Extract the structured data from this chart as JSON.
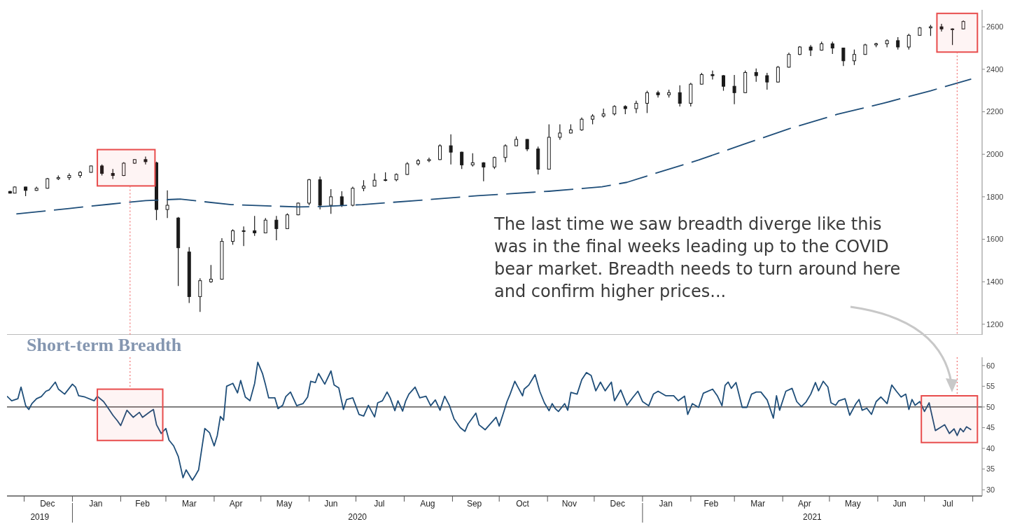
{
  "chart_data": [
    {
      "type": "candlestick",
      "color": "#1a1a1a",
      "x": [
        "2019-11-22",
        "2019-11-25",
        "2019-12-02",
        "2019-12-09",
        "2019-12-16",
        "2019-12-23",
        "2019-12-30",
        "2020-01-06",
        "2020-01-13",
        "2020-01-20",
        "2020-01-27",
        "2020-02-03",
        "2020-02-10",
        "2020-02-17",
        "2020-02-24",
        "2020-03-02",
        "2020-03-09",
        "2020-03-16",
        "2020-03-23",
        "2020-03-30",
        "2020-04-06",
        "2020-04-13",
        "2020-04-20",
        "2020-04-27",
        "2020-05-04",
        "2020-05-11",
        "2020-05-18",
        "2020-05-25",
        "2020-06-01",
        "2020-06-08",
        "2020-06-15",
        "2020-06-22",
        "2020-06-29",
        "2020-07-06",
        "2020-07-13",
        "2020-07-20",
        "2020-07-27",
        "2020-08-03",
        "2020-08-10",
        "2020-08-17",
        "2020-08-24",
        "2020-08-31",
        "2020-09-07",
        "2020-09-14",
        "2020-09-21",
        "2020-09-28",
        "2020-10-05",
        "2020-10-12",
        "2020-10-19",
        "2020-10-26",
        "2020-11-02",
        "2020-11-09",
        "2020-11-16",
        "2020-11-23",
        "2020-11-30",
        "2020-12-07",
        "2020-12-14",
        "2020-12-21",
        "2020-12-28",
        "2021-01-04",
        "2021-01-11",
        "2021-01-18",
        "2021-01-25",
        "2021-02-01",
        "2021-02-08",
        "2021-02-15",
        "2021-02-22",
        "2021-03-01",
        "2021-03-08",
        "2021-03-15",
        "2021-03-22",
        "2021-03-29",
        "2021-04-05",
        "2021-04-12",
        "2021-04-19",
        "2021-04-26",
        "2021-05-03",
        "2021-05-10",
        "2021-05-17",
        "2021-05-24",
        "2021-05-31",
        "2021-06-07",
        "2021-06-14",
        "2021-06-21",
        "2021-06-28",
        "2021-07-05",
        "2021-07-12",
        "2021-07-19",
        "2021-07-26"
      ],
      "ohlc": [
        [
          1825,
          1828,
          1815,
          1817
        ],
        [
          1817,
          1849,
          1817,
          1846
        ],
        [
          1846,
          1847,
          1803,
          1830
        ],
        [
          1830,
          1847,
          1828,
          1840
        ],
        [
          1840,
          1889,
          1838,
          1885
        ],
        [
          1885,
          1900,
          1879,
          1890
        ],
        [
          1890,
          1910,
          1879,
          1900
        ],
        [
          1900,
          1921,
          1889,
          1915
        ],
        [
          1915,
          1947,
          1913,
          1945
        ],
        [
          1945,
          1952,
          1900,
          1910
        ],
        [
          1910,
          1931,
          1884,
          1900
        ],
        [
          1900,
          1963,
          1898,
          1958
        ],
        [
          1958,
          1978,
          1955,
          1975
        ],
        [
          1975,
          1989,
          1952,
          1965
        ],
        [
          1960,
          1965,
          1690,
          1740
        ],
        [
          1740,
          1830,
          1700,
          1760
        ],
        [
          1700,
          1705,
          1380,
          1560
        ],
        [
          1540,
          1563,
          1300,
          1330
        ],
        [
          1330,
          1416,
          1258,
          1405
        ],
        [
          1400,
          1479,
          1395,
          1412
        ],
        [
          1412,
          1605,
          1410,
          1590
        ],
        [
          1590,
          1647,
          1574,
          1640
        ],
        [
          1640,
          1660,
          1568,
          1640
        ],
        [
          1640,
          1710,
          1616,
          1630
        ],
        [
          1630,
          1700,
          1628,
          1690
        ],
        [
          1690,
          1710,
          1595,
          1650
        ],
        [
          1650,
          1722,
          1648,
          1715
        ],
        [
          1715,
          1773,
          1713,
          1770
        ],
        [
          1770,
          1884,
          1760,
          1880
        ],
        [
          1880,
          1895,
          1740,
          1760
        ],
        [
          1760,
          1836,
          1720,
          1800
        ],
        [
          1800,
          1826,
          1752,
          1760
        ],
        [
          1760,
          1847,
          1755,
          1840
        ],
        [
          1840,
          1878,
          1826,
          1850
        ],
        [
          1850,
          1910,
          1848,
          1878
        ],
        [
          1878,
          1915,
          1873,
          1880
        ],
        [
          1880,
          1910,
          1873,
          1905
        ],
        [
          1905,
          1963,
          1903,
          1955
        ],
        [
          1955,
          1978,
          1947,
          1970
        ],
        [
          1970,
          1984,
          1963,
          1975
        ],
        [
          1975,
          2047,
          1973,
          2040
        ],
        [
          2040,
          2094,
          1952,
          2010
        ],
        [
          2010,
          2012,
          1931,
          1950
        ],
        [
          1950,
          2005,
          1942,
          1960
        ],
        [
          1960,
          1963,
          1873,
          1940
        ],
        [
          1940,
          1989,
          1931,
          1985
        ],
        [
          1985,
          2047,
          1963,
          2040
        ],
        [
          2040,
          2084,
          2038,
          2070
        ],
        [
          2070,
          2072,
          2015,
          2025
        ],
        [
          2025,
          2036,
          1905,
          1930
        ],
        [
          1930,
          2141,
          1928,
          2080
        ],
        [
          2080,
          2141,
          2068,
          2100
        ],
        [
          2100,
          2141,
          2098,
          2115
        ],
        [
          2115,
          2173,
          2110,
          2165
        ],
        [
          2165,
          2189,
          2141,
          2180
        ],
        [
          2180,
          2215,
          2173,
          2190
        ],
        [
          2190,
          2231,
          2183,
          2225
        ],
        [
          2225,
          2231,
          2189,
          2215
        ],
        [
          2215,
          2252,
          2194,
          2240
        ],
        [
          2240,
          2299,
          2194,
          2290
        ],
        [
          2290,
          2299,
          2267,
          2280
        ],
        [
          2280,
          2304,
          2267,
          2290
        ],
        [
          2290,
          2325,
          2225,
          2240
        ],
        [
          2240,
          2336,
          2225,
          2330
        ],
        [
          2330,
          2383,
          2328,
          2375
        ],
        [
          2375,
          2394,
          2352,
          2370
        ],
        [
          2370,
          2373,
          2299,
          2320
        ],
        [
          2320,
          2373,
          2236,
          2290
        ],
        [
          2290,
          2394,
          2288,
          2385
        ],
        [
          2385,
          2404,
          2341,
          2370
        ],
        [
          2370,
          2383,
          2304,
          2340
        ],
        [
          2340,
          2415,
          2338,
          2410
        ],
        [
          2410,
          2478,
          2408,
          2470
        ],
        [
          2470,
          2509,
          2467,
          2505
        ],
        [
          2505,
          2514,
          2462,
          2490
        ],
        [
          2490,
          2530,
          2488,
          2520
        ],
        [
          2520,
          2530,
          2472,
          2500
        ],
        [
          2500,
          2502,
          2415,
          2440
        ],
        [
          2440,
          2493,
          2420,
          2470
        ],
        [
          2470,
          2520,
          2468,
          2515
        ],
        [
          2515,
          2525,
          2504,
          2520
        ],
        [
          2520,
          2541,
          2504,
          2535
        ],
        [
          2535,
          2551,
          2493,
          2505
        ],
        [
          2505,
          2567,
          2493,
          2560
        ],
        [
          2560,
          2599,
          2558,
          2595
        ],
        [
          2595,
          2609,
          2557,
          2600
        ],
        [
          2600,
          2614,
          2578,
          2590
        ],
        [
          2590,
          2593,
          2514,
          2590
        ],
        [
          2590,
          2630,
          2588,
          2625
        ]
      ],
      "series": [
        {
          "type": "line",
          "color": "#1f4e79",
          "line_style": "dashed",
          "x": [
            "2019-11-26",
            "2019-12-30",
            "2020-01-25",
            "2020-02-17",
            "2020-03-10",
            "2020-04-12",
            "2020-05-25",
            "2020-06-08",
            "2020-07-05",
            "2020-08-10",
            "2020-09-17",
            "2020-11-02",
            "2020-12-06",
            "2020-12-22",
            "2021-01-07",
            "2021-02-06",
            "2021-03-07",
            "2021-04-05",
            "2021-05-06",
            "2021-06-05",
            "2021-07-05",
            "2021-07-31"
          ],
          "values": [
            1719,
            1745,
            1765,
            1782,
            1789,
            1763,
            1752,
            1754,
            1763,
            1783,
            1805,
            1826,
            1847,
            1868,
            1905,
            1973,
            2047,
            2120,
            2188,
            2241,
            2299,
            2354
          ]
        }
      ],
      "xlim": [
        "2019-11-20",
        "2021-08-07"
      ],
      "ylim": [
        1150,
        2680
      ],
      "yticks": [
        1200,
        1400,
        1600,
        1800,
        2000,
        2200,
        2400,
        2600
      ],
      "tick_labels": "y",
      "bands": [
        {
          "axis": "x",
          "from": "2020-01-17",
          "to": "2020-02-23",
          "color": "#e84c4c"
        },
        {
          "axis": "x",
          "from": "2021-07-09",
          "to": "2021-08-04",
          "color": "#e84c4c"
        }
      ],
      "ref_lines": [
        {
          "axis": "x",
          "value": "2020-02-07",
          "color": "#f07070",
          "line_style": "dotted"
        },
        {
          "axis": "x",
          "value": "2021-07-22",
          "color": "#f07070",
          "line_style": "dotted"
        }
      ],
      "annotations": [
        "The last time we saw breadth diverge like this was in the final weeks leading up to the COVID bear market. Breadth needs to turn around here and confirm higher prices..."
      ]
    },
    {
      "type": "line",
      "title": "Short-term Breadth",
      "color": "#1f4e79",
      "x": [
        "2019-11-20",
        "2019-11-23",
        "2019-11-27",
        "2019-11-29",
        "2019-12-02",
        "2019-12-04",
        "2019-12-06",
        "2019-12-09",
        "2019-12-12",
        "2019-12-15",
        "2019-12-17",
        "2019-12-21",
        "2019-12-23",
        "2019-12-27",
        "2020-01-01",
        "2020-01-03",
        "2020-01-05",
        "2020-01-09",
        "2020-01-15",
        "2020-01-17",
        "2020-01-21",
        "2020-01-24",
        "2020-01-27",
        "2020-01-30",
        "2020-02-01",
        "2020-02-05",
        "2020-02-09",
        "2020-02-13",
        "2020-02-15",
        "2020-02-20",
        "2020-02-22",
        "2020-02-24",
        "2020-02-27",
        "2020-03-01",
        "2020-03-03",
        "2020-03-06",
        "2020-03-09",
        "2020-03-12",
        "2020-03-14",
        "2020-03-18",
        "2020-03-20",
        "2020-03-22",
        "2020-03-24",
        "2020-03-26",
        "2020-03-29",
        "2020-04-01",
        "2020-04-03",
        "2020-04-05",
        "2020-04-07",
        "2020-04-09",
        "2020-04-13",
        "2020-04-16",
        "2020-04-18",
        "2020-04-21",
        "2020-04-24",
        "2020-04-27",
        "2020-04-29",
        "2020-05-02",
        "2020-05-04",
        "2020-05-06",
        "2020-05-10",
        "2020-05-12",
        "2020-05-15",
        "2020-05-17",
        "2020-05-20",
        "2020-05-24",
        "2020-05-28",
        "2020-05-31",
        "2020-06-02",
        "2020-06-05",
        "2020-06-07",
        "2020-06-11",
        "2020-06-15",
        "2020-06-17",
        "2020-06-20",
        "2020-06-23",
        "2020-06-25",
        "2020-06-29",
        "2020-07-03",
        "2020-07-06",
        "2020-07-09",
        "2020-07-13",
        "2020-07-15",
        "2020-07-18",
        "2020-07-21",
        "2020-07-23",
        "2020-07-26",
        "2020-07-28",
        "2020-07-31",
        "2020-08-02",
        "2020-08-04",
        "2020-08-08",
        "2020-08-11",
        "2020-08-15",
        "2020-08-18",
        "2020-08-21",
        "2020-08-24",
        "2020-08-27",
        "2020-08-30",
        "2020-09-02",
        "2020-09-06",
        "2020-09-09",
        "2020-09-11",
        "2020-09-16",
        "2020-09-18",
        "2020-09-22",
        "2020-09-29",
        "2020-10-01",
        "2020-10-04",
        "2020-10-06",
        "2020-10-08",
        "2020-10-11",
        "2020-10-13",
        "2020-10-16",
        "2020-10-17",
        "2020-10-20",
        "2020-10-24",
        "2020-10-27",
        "2020-10-30",
        "2020-11-02",
        "2020-11-04",
        "2020-11-06",
        "2020-11-08",
        "2020-11-12",
        "2020-11-14",
        "2020-11-16",
        "2020-11-20",
        "2020-11-23",
        "2020-11-26",
        "2020-11-29",
        "2020-12-02",
        "2020-12-05",
        "2020-12-08",
        "2020-12-12",
        "2020-12-14",
        "2020-12-18",
        "2020-12-22",
        "2020-12-26",
        "2020-12-29",
        "2021-01-01",
        "2021-01-05",
        "2021-01-08",
        "2021-01-11",
        "2021-01-16",
        "2021-01-21",
        "2021-01-24",
        "2021-01-28",
        "2021-01-30",
        "2021-02-02",
        "2021-02-06",
        "2021-02-09",
        "2021-02-15",
        "2021-02-18",
        "2021-02-21",
        "2021-02-23",
        "2021-02-25",
        "2021-02-27",
        "2021-03-02",
        "2021-03-06",
        "2021-03-09",
        "2021-03-12",
        "2021-03-15",
        "2021-03-18",
        "2021-03-22",
        "2021-03-26",
        "2021-03-28",
        "2021-03-30",
        "2021-04-03",
        "2021-04-07",
        "2021-04-10",
        "2021-04-13",
        "2021-04-16",
        "2021-04-19",
        "2021-04-22",
        "2021-04-24",
        "2021-04-27",
        "2021-04-30",
        "2021-05-02",
        "2021-05-05",
        "2021-05-07",
        "2021-05-11",
        "2021-05-14",
        "2021-05-18",
        "2021-05-20",
        "2021-05-22",
        "2021-05-25",
        "2021-05-28",
        "2021-05-31",
        "2021-06-03",
        "2021-06-07",
        "2021-06-10",
        "2021-06-13",
        "2021-06-16",
        "2021-06-19",
        "2021-06-21",
        "2021-06-23",
        "2021-06-25",
        "2021-06-28",
        "2021-07-01",
        "2021-07-04",
        "2021-07-08",
        "2021-07-11",
        "2021-07-14",
        "2021-07-17",
        "2021-07-20",
        "2021-07-22",
        "2021-07-24",
        "2021-07-26",
        "2021-07-28",
        "2021-07-31"
      ],
      "values": [
        52.6,
        51.5,
        52,
        54.8,
        50.3,
        49.4,
        50.8,
        52,
        52.5,
        53.8,
        54.1,
        56,
        54.3,
        53.1,
        55.5,
        54.8,
        52.7,
        52.4,
        51.5,
        52.6,
        51.3,
        49.7,
        48,
        46.6,
        45.5,
        49.2,
        47.5,
        48.7,
        47.5,
        48.9,
        49.4,
        45.7,
        43.6,
        44.8,
        42,
        40.6,
        38,
        32.9,
        34.8,
        32.3,
        33.5,
        34.8,
        39.8,
        44.8,
        43.8,
        40.6,
        43.1,
        47.7,
        46.8,
        55,
        55.7,
        53.4,
        56.4,
        52.4,
        51.5,
        55.7,
        60.8,
        58.1,
        55.3,
        52.2,
        52.2,
        49.6,
        50.4,
        52.5,
        53.6,
        50.3,
        50.8,
        52.4,
        56.2,
        55.9,
        58.1,
        55.5,
        58.7,
        55.3,
        54.6,
        49.4,
        51.8,
        52.2,
        48.2,
        47.8,
        50.4,
        47.6,
        51,
        51.5,
        53.6,
        52.2,
        49.1,
        51.5,
        49,
        51.5,
        53.1,
        54.8,
        52.2,
        52.6,
        50.3,
        51.7,
        49.2,
        52.6,
        50.4,
        47.1,
        45,
        44.1,
        45.9,
        48.5,
        45.7,
        44.5,
        47.5,
        45.4,
        48.9,
        51.3,
        53.1,
        56.2,
        54.8,
        52.7,
        54.3,
        55.3,
        57.8,
        53.8,
        51,
        49.1,
        50.8,
        49.6,
        48.9,
        50.8,
        49.2,
        53.5,
        53.1,
        56.6,
        58.3,
        57.6,
        53.9,
        56,
        53.9,
        56,
        51.5,
        54.1,
        50.4,
        52.4,
        53.8,
        51.3,
        50.3,
        53.1,
        53.8,
        52.7,
        52.7,
        51.5,
        52.6,
        48.2,
        50.8,
        49.9,
        53.3,
        54.3,
        52.7,
        50.3,
        55.2,
        56,
        54.5,
        55.9,
        49.9,
        49.9,
        53.1,
        53.6,
        53.6,
        51.7,
        47.3,
        52.7,
        49.2,
        53.8,
        54.5,
        51.3,
        50.1,
        51.2,
        53.1,
        55.9,
        53.9,
        56.2,
        54.8,
        51,
        50.4,
        51.5,
        52,
        48,
        50.8,
        51.8,
        49.2,
        49.7,
        48.2,
        51.3,
        52.4,
        50.8,
        55.3,
        53.8,
        52.4,
        53.1,
        49.4,
        51.8,
        50.4,
        51.3,
        48.9,
        51,
        44.3,
        45,
        45.7,
        43.6,
        44.7,
        43.1,
        44.8,
        44,
        45.2,
        44.5
      ],
      "xlim": [
        "2019-11-20",
        "2021-08-07"
      ],
      "xticks": [
        {
          "value": "2019-12-01",
          "label": null
        },
        {
          "value": "2019-12-16",
          "label": "Dec"
        },
        {
          "value": "2020-01-01",
          "label": null
        },
        {
          "value": "2020-01-16",
          "label": "Jan"
        },
        {
          "value": "2020-02-01",
          "label": null
        },
        {
          "value": "2020-02-15",
          "label": "Feb"
        },
        {
          "value": "2020-03-01",
          "label": null
        },
        {
          "value": "2020-03-16",
          "label": "Mar"
        },
        {
          "value": "2020-04-01",
          "label": null
        },
        {
          "value": "2020-04-15",
          "label": "Apr"
        },
        {
          "value": "2020-05-01",
          "label": null
        },
        {
          "value": "2020-05-16",
          "label": "May"
        },
        {
          "value": "2020-06-01",
          "label": null
        },
        {
          "value": "2020-06-15",
          "label": "Jun"
        },
        {
          "value": "2020-07-01",
          "label": null
        },
        {
          "value": "2020-07-16",
          "label": "Jul"
        },
        {
          "value": "2020-08-01",
          "label": null
        },
        {
          "value": "2020-08-16",
          "label": "Aug"
        },
        {
          "value": "2020-09-01",
          "label": null
        },
        {
          "value": "2020-09-15",
          "label": "Sep"
        },
        {
          "value": "2020-10-01",
          "label": null
        },
        {
          "value": "2020-10-16",
          "label": "Oct"
        },
        {
          "value": "2020-11-01",
          "label": null
        },
        {
          "value": "2020-11-15",
          "label": "Nov"
        },
        {
          "value": "2020-12-01",
          "label": null
        },
        {
          "value": "2020-12-16",
          "label": "Dec"
        },
        {
          "value": "2021-01-01",
          "label": null
        },
        {
          "value": "2021-01-16",
          "label": "Jan"
        },
        {
          "value": "2021-02-01",
          "label": null
        },
        {
          "value": "2021-02-14",
          "label": "Feb"
        },
        {
          "value": "2021-03-01",
          "label": null
        },
        {
          "value": "2021-03-16",
          "label": "Mar"
        },
        {
          "value": "2021-04-01",
          "label": null
        },
        {
          "value": "2021-04-15",
          "label": "Apr"
        },
        {
          "value": "2021-05-01",
          "label": null
        },
        {
          "value": "2021-05-16",
          "label": "May"
        },
        {
          "value": "2021-06-01",
          "label": null
        },
        {
          "value": "2021-06-15",
          "label": "Jun"
        },
        {
          "value": "2021-07-01",
          "label": null
        },
        {
          "value": "2021-07-16",
          "label": "Jul"
        },
        {
          "value": "2021-08-01",
          "label": null
        }
      ],
      "ylim": [
        28.5,
        62
      ],
      "yticks": [
        30,
        35,
        40,
        45,
        50,
        55,
        60
      ],
      "bands": [
        {
          "axis": "x",
          "from": "2020-01-17",
          "to": "2020-02-28",
          "color": "#e84c4c"
        },
        {
          "axis": "x",
          "from": "2021-06-29",
          "to": "2021-08-04",
          "color": "#e84c4c"
        }
      ],
      "ref_lines": [
        {
          "axis": "y",
          "value": 50,
          "color": "#000000",
          "line_style": "solid"
        },
        {
          "axis": "x",
          "value": "2020-02-07",
          "color": "#f07070",
          "line_style": "dotted"
        },
        {
          "axis": "x",
          "value": "2021-07-22",
          "color": "#f07070",
          "line_style": "dotted"
        }
      ],
      "annotations": [
        "2019",
        "2020",
        "2021"
      ]
    }
  ]
}
